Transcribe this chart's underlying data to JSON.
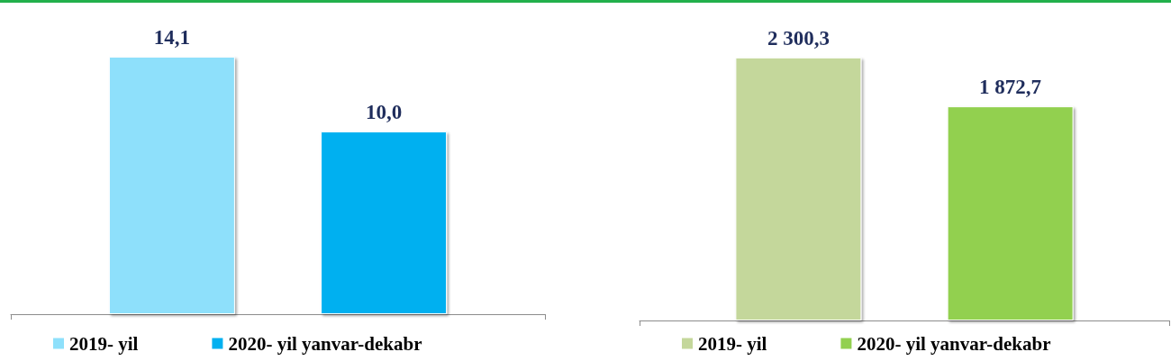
{
  "chart_data": [
    {
      "type": "bar",
      "categories": [
        null
      ],
      "legend": "bottom",
      "series": [
        {
          "name": "2019- yil",
          "color": "#8ee0fb",
          "values": [
            14.1
          ],
          "value_labels": [
            "14,1"
          ]
        },
        {
          "name": "2020- yil yanvar-dekabr",
          "color": "#00b0f0",
          "values": [
            10.0
          ],
          "value_labels": [
            "10,0"
          ]
        }
      ]
    },
    {
      "type": "bar",
      "categories": [
        null
      ],
      "legend": "bottom",
      "series": [
        {
          "name": "2019- yil",
          "color": "#c4d79b",
          "values": [
            2300.3
          ],
          "value_labels": [
            "2 300,3"
          ]
        },
        {
          "name": "2020- yil yanvar-dekabr",
          "color": "#92d050",
          "values": [
            1872.7
          ],
          "value_labels": [
            "1 872,7"
          ]
        }
      ]
    }
  ]
}
